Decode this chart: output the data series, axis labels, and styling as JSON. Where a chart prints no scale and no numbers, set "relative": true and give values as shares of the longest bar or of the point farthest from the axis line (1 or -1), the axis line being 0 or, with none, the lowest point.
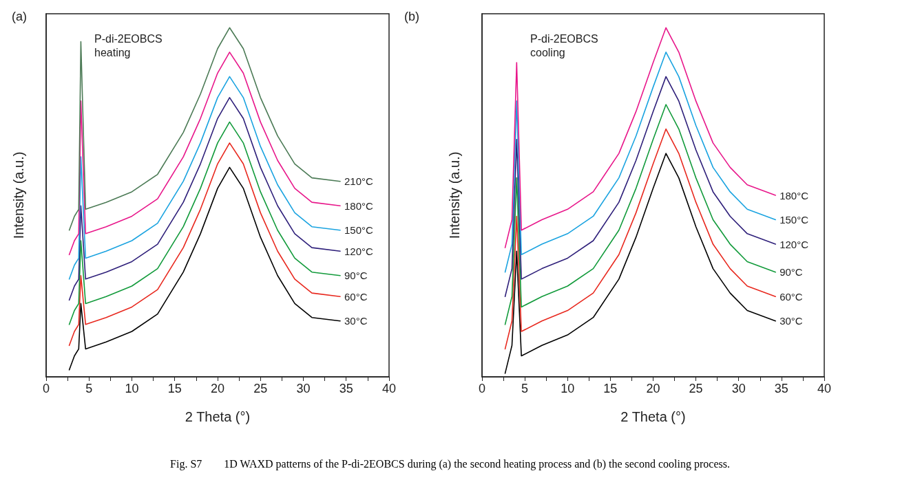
{
  "chart_data": [
    {
      "type": "line",
      "title": "(a)",
      "xlabel": "2 Theta (°)",
      "ylabel": "Intensity (a.u.)",
      "relative": true,
      "grid": false,
      "legend": false,
      "marker": "none",
      "line_style": "solid",
      "annotations": [
        "P-di-2EOBCS\nheating",
        "Fig. S7        1D WAXD patterns of the P-di-2EOBCS during (a) the second heating process and (b) the second cooling process."
      ],
      "xlim": [
        0,
        40
      ],
      "xticks": [
        0,
        {
          "value": 2.5,
          "label": null
        },
        5,
        {
          "value": 7.5,
          "label": null
        },
        10,
        {
          "value": 12.5,
          "label": null
        },
        15,
        {
          "value": 17.5,
          "label": null
        },
        20,
        {
          "value": 22.5,
          "label": null
        },
        25,
        {
          "value": 27.5,
          "label": null
        },
        30,
        {
          "value": 32.5,
          "label": null
        },
        35,
        {
          "value": 37.5,
          "label": null
        },
        40
      ],
      "x": [
        2.7,
        3.3,
        3.8,
        4.05,
        4.6,
        7,
        10,
        13,
        16,
        18,
        20,
        21.4,
        23,
        25,
        27,
        29,
        31,
        34.3
      ],
      "series": [
        {
          "name": "30°C",
          "color": "#000000",
          "values": [
            0.02,
            0.06,
            0.08,
            0.21,
            0.08,
            0.1,
            0.13,
            0.18,
            0.3,
            0.41,
            0.54,
            0.6,
            0.54,
            0.4,
            0.29,
            0.21,
            0.17,
            0.16
          ]
        },
        {
          "name": "60°C",
          "color": "#e8281e",
          "values": [
            0.09,
            0.13,
            0.15,
            0.29,
            0.15,
            0.17,
            0.2,
            0.25,
            0.37,
            0.48,
            0.61,
            0.67,
            0.61,
            0.47,
            0.36,
            0.28,
            0.24,
            0.23
          ]
        },
        {
          "name": "90°C",
          "color": "#119a3a",
          "values": [
            0.15,
            0.19,
            0.21,
            0.39,
            0.21,
            0.23,
            0.26,
            0.31,
            0.43,
            0.54,
            0.67,
            0.73,
            0.67,
            0.53,
            0.42,
            0.34,
            0.3,
            0.29
          ]
        },
        {
          "name": "120°C",
          "color": "#2e1f7a",
          "values": [
            0.22,
            0.26,
            0.28,
            0.49,
            0.28,
            0.3,
            0.33,
            0.38,
            0.5,
            0.61,
            0.74,
            0.8,
            0.74,
            0.6,
            0.49,
            0.41,
            0.37,
            0.36
          ]
        },
        {
          "name": "150°C",
          "color": "#1aa3e0",
          "values": [
            0.28,
            0.32,
            0.34,
            0.63,
            0.34,
            0.36,
            0.39,
            0.44,
            0.56,
            0.67,
            0.8,
            0.86,
            0.8,
            0.66,
            0.55,
            0.47,
            0.43,
            0.42
          ]
        },
        {
          "name": "180°C",
          "color": "#e8168a",
          "values": [
            0.35,
            0.39,
            0.41,
            0.79,
            0.41,
            0.43,
            0.46,
            0.51,
            0.63,
            0.74,
            0.87,
            0.93,
            0.87,
            0.73,
            0.62,
            0.54,
            0.5,
            0.49
          ]
        },
        {
          "name": "210°C",
          "color": "#4b7a55",
          "values": [
            0.42,
            0.46,
            0.48,
            0.96,
            0.48,
            0.5,
            0.53,
            0.58,
            0.7,
            0.81,
            0.94,
            1.0,
            0.94,
            0.8,
            0.69,
            0.61,
            0.57,
            0.56
          ]
        }
      ]
    },
    {
      "type": "line",
      "title": "(b)",
      "xlabel": "2 Theta (°)",
      "ylabel": "Intensity (a.u.)",
      "relative": true,
      "grid": false,
      "legend": false,
      "marker": "none",
      "line_style": "solid",
      "annotations": [
        "P-di-2EOBCS\ncooling"
      ],
      "xlim": [
        0,
        40
      ],
      "xticks": [
        0,
        {
          "value": 2.5,
          "label": null
        },
        5,
        {
          "value": 7.5,
          "label": null
        },
        10,
        {
          "value": 12.5,
          "label": null
        },
        15,
        {
          "value": 17.5,
          "label": null
        },
        20,
        {
          "value": 22.5,
          "label": null
        },
        25,
        {
          "value": 27.5,
          "label": null
        },
        30,
        {
          "value": 32.5,
          "label": null
        },
        35,
        {
          "value": 37.5,
          "label": null
        },
        40
      ],
      "x": [
        2.7,
        3.5,
        4.05,
        4.6,
        7,
        10,
        13,
        16,
        18,
        20,
        21.5,
        23,
        25,
        27,
        29,
        31,
        34.3
      ],
      "series": [
        {
          "name": "30°C",
          "color": "#000000",
          "values": [
            0.01,
            0.09,
            0.36,
            0.06,
            0.09,
            0.12,
            0.17,
            0.28,
            0.4,
            0.54,
            0.64,
            0.57,
            0.43,
            0.31,
            0.24,
            0.19,
            0.16
          ]
        },
        {
          "name": "60°C",
          "color": "#e8281e",
          "values": [
            0.08,
            0.16,
            0.46,
            0.13,
            0.16,
            0.19,
            0.24,
            0.35,
            0.47,
            0.61,
            0.71,
            0.64,
            0.5,
            0.38,
            0.31,
            0.26,
            0.23
          ]
        },
        {
          "name": "90°C",
          "color": "#119a3a",
          "values": [
            0.15,
            0.23,
            0.57,
            0.2,
            0.23,
            0.26,
            0.31,
            0.42,
            0.54,
            0.68,
            0.78,
            0.71,
            0.57,
            0.45,
            0.38,
            0.33,
            0.3
          ]
        },
        {
          "name": "120°C",
          "color": "#2e1f7a",
          "values": [
            0.23,
            0.31,
            0.68,
            0.28,
            0.31,
            0.34,
            0.39,
            0.5,
            0.62,
            0.76,
            0.86,
            0.79,
            0.65,
            0.53,
            0.46,
            0.41,
            0.38
          ]
        },
        {
          "name": "150°C",
          "color": "#1aa3e0",
          "values": [
            0.3,
            0.38,
            0.79,
            0.35,
            0.38,
            0.41,
            0.46,
            0.57,
            0.69,
            0.83,
            0.93,
            0.86,
            0.72,
            0.6,
            0.53,
            0.48,
            0.45
          ]
        },
        {
          "name": "180°C",
          "color": "#e8168a",
          "values": [
            0.37,
            0.45,
            0.9,
            0.42,
            0.45,
            0.48,
            0.53,
            0.64,
            0.76,
            0.9,
            1.0,
            0.93,
            0.79,
            0.67,
            0.6,
            0.55,
            0.52
          ]
        }
      ]
    }
  ]
}
